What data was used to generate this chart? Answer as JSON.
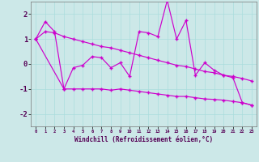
{
  "background_color": "#cce8e8",
  "grid_color": "#aadddd",
  "line_color": "#cc00cc",
  "xlabel": "Windchill (Refroidissement éolien,°C)",
  "ylim": [
    -2.5,
    2.5
  ],
  "yticks": [
    -2,
    -1,
    0,
    1,
    2
  ],
  "hours": [
    0,
    1,
    2,
    3,
    4,
    5,
    6,
    7,
    8,
    9,
    10,
    11,
    12,
    13,
    14,
    15,
    16,
    17,
    18,
    19,
    20,
    21,
    22,
    23
  ],
  "line_smooth": [
    1.0,
    1.3,
    1.25,
    1.1,
    1.0,
    0.9,
    0.8,
    0.7,
    0.65,
    0.55,
    0.45,
    0.35,
    0.25,
    0.15,
    0.05,
    -0.05,
    -0.1,
    -0.2,
    -0.3,
    -0.35,
    -0.45,
    -0.5,
    -0.58,
    -0.68
  ],
  "line_jagged": [
    1.0,
    1.7,
    1.3,
    -1.0,
    -0.15,
    -0.05,
    0.3,
    0.25,
    -0.15,
    0.05,
    -0.5,
    1.3,
    1.25,
    1.1,
    2.55,
    1.0,
    1.75,
    -0.45,
    0.05,
    -0.25,
    -0.45,
    -0.55,
    -1.55,
    -1.65
  ],
  "line_flat_x": [
    0,
    3,
    4,
    5,
    6,
    7,
    8,
    9,
    10,
    11,
    12,
    13,
    14,
    15,
    16,
    17,
    18,
    19,
    20,
    21,
    22,
    23
  ],
  "line_flat_y": [
    1.0,
    -1.0,
    -1.0,
    -1.0,
    -1.0,
    -1.0,
    -1.05,
    -1.0,
    -1.05,
    -1.1,
    -1.15,
    -1.2,
    -1.25,
    -1.3,
    -1.3,
    -1.35,
    -1.4,
    -1.42,
    -1.45,
    -1.5,
    -1.55,
    -1.65
  ]
}
